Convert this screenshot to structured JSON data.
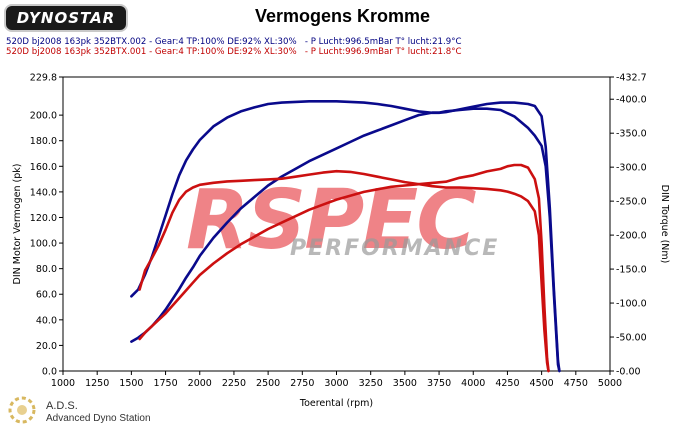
{
  "logo_text": "DYNOSTAR",
  "chart_data": {
    "type": "line",
    "title": "Vermogens Kromme",
    "runs": [
      "520D bj2008 163pk 352BTX.002 - Gear:4 TP:100% DE:92% XL:30%   - P Lucht:996.5mBar T° lucht:21.9°C",
      "520D bj2008 163pk 352BTX.001 - Gear:4 TP:100% DE:92% XL:30%   - P Lucht:996.9mBar T° lucht:21.8°C"
    ],
    "xlabel": "Toerental (rpm)",
    "ylabel_left": "DIN Motor Vermogen (pk)",
    "ylabel_right": "DIN Torque (Nm)",
    "xlim": [
      1000,
      5000
    ],
    "ylim_left": [
      0,
      229.8
    ],
    "ylim_right": [
      0,
      432.7
    ],
    "x_ticks": [
      "1000",
      "1250",
      "1500",
      "1750",
      "2000",
      "2250",
      "2500",
      "2750",
      "3000",
      "3250",
      "3500",
      "3750",
      "4000",
      "4250",
      "4500",
      "4750",
      "5000"
    ],
    "y_left_ticks": [
      "0.0",
      "20.0",
      "40.0",
      "60.0",
      "80.0",
      "100.0",
      "120.0",
      "140.0",
      "160.0",
      "180.0",
      "200.0",
      "229.8"
    ],
    "y_right_ticks": [
      "-0.00",
      "-50.00",
      "-100.0",
      "-150.0",
      "-200.0",
      "-250.0",
      "-300.0",
      "-350.0",
      "-400.0",
      "-432.7"
    ],
    "grid": false,
    "series": [
      {
        "axis": "left",
        "color": "#0a0a8c",
        "x": [
          1500,
          1550,
          1600,
          1650,
          1700,
          1750,
          1800,
          1850,
          1900,
          1950,
          2000,
          2100,
          2200,
          2300,
          2400,
          2500,
          2600,
          2700,
          2800,
          2900,
          3000,
          3100,
          3200,
          3300,
          3400,
          3500,
          3600,
          3700,
          3750,
          3800,
          3900,
          4000,
          4100,
          4200,
          4300,
          4400,
          4450,
          4500,
          4530,
          4560,
          4590,
          4620,
          4630
        ],
        "y": [
          23,
          26,
          30,
          35,
          41,
          48,
          56,
          64,
          73,
          81,
          90,
          104,
          116,
          127,
          136,
          145,
          152,
          158,
          164,
          169,
          174,
          179,
          184,
          188,
          192,
          196,
          200,
          202,
          202,
          203,
          204,
          205,
          205,
          204,
          199,
          190,
          184,
          176,
          160,
          120,
          60,
          5,
          0
        ]
      },
      {
        "axis": "right",
        "color": "#0a0a8c",
        "x": [
          1500,
          1550,
          1600,
          1650,
          1700,
          1750,
          1800,
          1850,
          1900,
          1950,
          2000,
          2100,
          2200,
          2300,
          2400,
          2500,
          2600,
          2700,
          2800,
          2900,
          3000,
          3100,
          3200,
          3300,
          3400,
          3500,
          3600,
          3700,
          3750,
          3800,
          3900,
          4000,
          4100,
          4200,
          4300,
          4400,
          4450,
          4500,
          4530,
          4560,
          4590,
          4620,
          4630
        ],
        "y": [
          110,
          120,
          142,
          168,
          198,
          229,
          260,
          288,
          310,
          326,
          340,
          360,
          373,
          382,
          388,
          393,
          395,
          396,
          397,
          397,
          397,
          396,
          395,
          393,
          390,
          386,
          382,
          380,
          380,
          381,
          385,
          389,
          393,
          395,
          395,
          393,
          390,
          375,
          330,
          240,
          120,
          15,
          0
        ]
      },
      {
        "axis": "left",
        "color": "#cc1010",
        "x": [
          1560,
          1600,
          1650,
          1700,
          1750,
          1800,
          1850,
          1900,
          1950,
          2000,
          2100,
          2200,
          2300,
          2400,
          2500,
          2600,
          2700,
          2800,
          2900,
          3000,
          3100,
          3200,
          3300,
          3400,
          3500,
          3600,
          3700,
          3800,
          3900,
          4000,
          4100,
          4200,
          4250,
          4300,
          4350,
          4400,
          4450,
          4480,
          4500,
          4520,
          4540,
          4550
        ],
        "y": [
          25,
          30,
          35,
          40,
          45,
          51,
          57,
          63,
          69,
          75,
          84,
          92,
          99,
          105,
          111,
          116,
          121,
          126,
          130,
          134,
          137,
          140,
          142,
          144,
          145,
          146,
          147,
          148,
          151,
          153,
          156,
          158,
          160,
          161,
          161,
          159,
          150,
          135,
          100,
          50,
          10,
          0
        ]
      },
      {
        "axis": "right",
        "color": "#cc1010",
        "x": [
          1560,
          1600,
          1650,
          1700,
          1750,
          1800,
          1850,
          1900,
          1950,
          2000,
          2100,
          2200,
          2300,
          2400,
          2500,
          2600,
          2700,
          2800,
          2900,
          3000,
          3100,
          3200,
          3300,
          3400,
          3500,
          3600,
          3700,
          3800,
          3900,
          4000,
          4100,
          4200,
          4250,
          4300,
          4350,
          4400,
          4450,
          4480,
          4500,
          4520,
          4540,
          4550
        ],
        "y": [
          120,
          148,
          166,
          185,
          208,
          233,
          252,
          264,
          270,
          274,
          277,
          279,
          280,
          281,
          282,
          283,
          286,
          289,
          292,
          294,
          293,
          290,
          286,
          282,
          278,
          275,
          272,
          270,
          270,
          269,
          268,
          266,
          264,
          261,
          257,
          250,
          235,
          200,
          130,
          60,
          12,
          0
        ]
      }
    ]
  },
  "watermark": {
    "main": "RSPEC",
    "sub": "PERFORMANCE"
  },
  "footer": {
    "title": "A.D.S.",
    "subtitle": "Advanced Dyno Station"
  }
}
